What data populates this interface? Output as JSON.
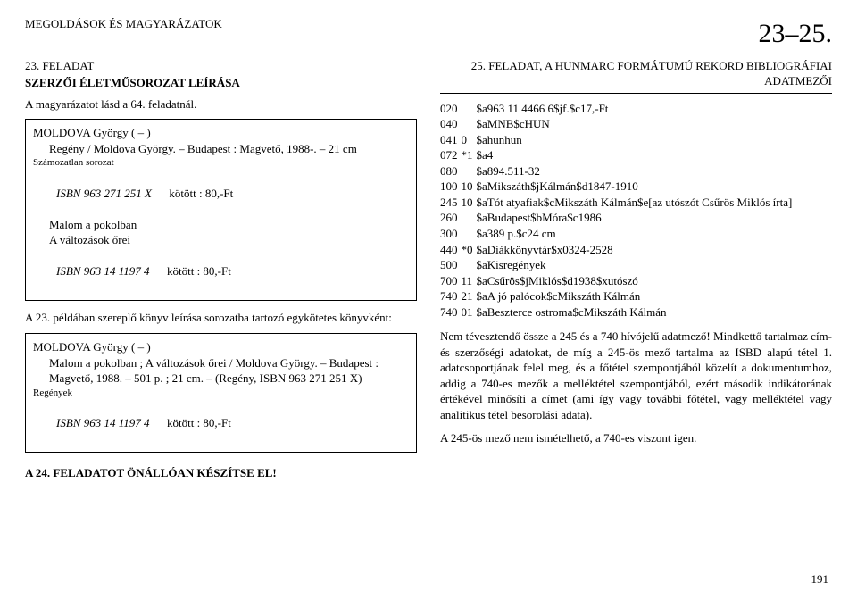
{
  "header": {
    "left": "MEGOLDÁSOK ÉS MAGYARÁZATOK",
    "right": "23–25."
  },
  "left_col": {
    "task_number": "23. FELADAT",
    "task_subtitle": "SZERZŐI ÉLETMŰSOROZAT LEÍRÁSA",
    "note": "A magyarázatot lásd a 64. feladatnál.",
    "box1": {
      "l1": "MOLDOVA György ( – )",
      "l2_pre": "Regény / Moldova György. – Budapest : Magvető, 1988-. – 21 cm",
      "l3": "Számozatlan sorozat",
      "isbn1_a": "ISBN 963 271 251 X",
      "isbn1_b": "kötött : 80,-Ft",
      "l5": "Malom a pokolban",
      "l6": "A változások őrei",
      "isbn2_a": "ISBN 963 14 1197 4",
      "isbn2_b": "kötött : 80,-Ft"
    },
    "mid_para": "A 23. példában szereplő könyv leírása sorozatba tartozó egykötetes könyvként:",
    "box2": {
      "l1": "MOLDOVA György ( – )",
      "l2": "Malom a pokolban ; A változások őrei / Moldova György. – Budapest : Magvető, 1988. – 501 p. ; 21 cm. – (Regény, ISBN 963 271 251 X)",
      "l3": "Regények",
      "isbn_a": "ISBN 963 14 1197 4",
      "isbn_b": "kötött : 80,-Ft"
    },
    "footer_line": "A 24. FELADATOT ÖNÁLLÓAN KÉSZÍTSE EL!"
  },
  "right_col": {
    "title_line1": "25. FELADAT, A HUNMARC FORMÁTUMÚ REKORD BIBLIOGRÁFIAI",
    "title_line2": "ADATMEZŐI",
    "marc": [
      {
        "tag": "020",
        "ind": "",
        "val": "$a963 11 4466 6$jf.$c17,-Ft"
      },
      {
        "tag": "040",
        "ind": "",
        "val": "$aMNB$cHUN"
      },
      {
        "tag": "041",
        "ind": "0",
        "val": "$ahunhun"
      },
      {
        "tag": "072",
        "ind": "*1",
        "val": "$a4"
      },
      {
        "tag": "080",
        "ind": "",
        "val": "$a894.511-32"
      },
      {
        "tag": "100",
        "ind": "10",
        "val": "$aMikszáth$jKálmán$d1847-1910"
      },
      {
        "tag": "245",
        "ind": "10",
        "val": "$aTót atyafiak$cMikszáth Kálmán$e[az utószót Csűrös Miklós írta]"
      },
      {
        "tag": "260",
        "ind": "",
        "val": "$aBudapest$bMóra$c1986"
      },
      {
        "tag": "300",
        "ind": "",
        "val": "$a389 p.$c24 cm"
      },
      {
        "tag": "440",
        "ind": "*0",
        "val": "$aDiákkönyvtár$x0324-2528"
      },
      {
        "tag": "500",
        "ind": "",
        "val": "$aKisregények"
      },
      {
        "tag": "700",
        "ind": "11",
        "val": "$aCsűrös$jMiklós$d1938$xutószó"
      },
      {
        "tag": "740",
        "ind": "21",
        "val": "$aA jó palócok$cMikszáth Kálmán"
      },
      {
        "tag": "740",
        "ind": "01",
        "val": "$aBeszterce ostroma$cMikszáth Kálmán"
      }
    ],
    "explain": "Nem tévesztendő össze a 245 és a 740 hívójelű adatmező! Mindkettő tartalmaz cím- és szerzőségi adatokat, de míg a 245-ös mező tartalma az ISBD alapú tétel 1. adatcsoportjának felel meg, és a főtétel szempontjából közelít a dokumentumhoz, addig a 740-es mezők a melléktétel szempontjából, ezért második indikátorának értékével minősíti a címet (ami így vagy további főtétel, vagy melléktétel vagy analitikus tétel besorolási adata).",
    "explain2": "A 245-ös mező nem ismételhető, a 740-es viszont igen."
  },
  "page_number": "191"
}
